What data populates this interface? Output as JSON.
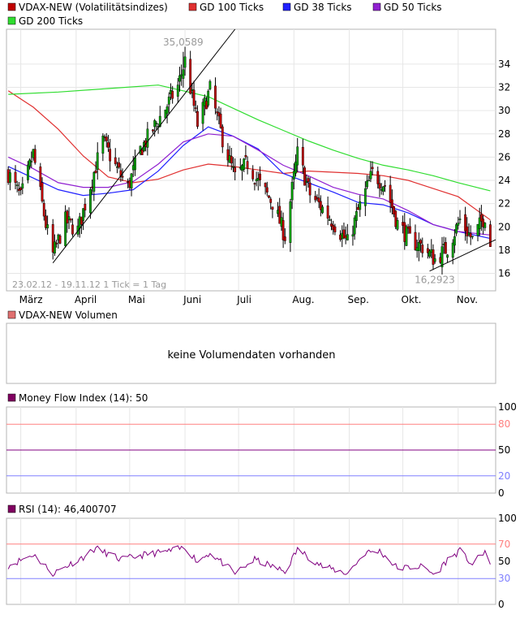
{
  "colors": {
    "frame": "#b4b4b4",
    "grid": "#e6e6e6",
    "text": "#000000",
    "candle_up": "#00a000",
    "candle_down": "#c00000",
    "candle_wick": "#000000",
    "gd100": "#e03030",
    "gd38": "#2020ff",
    "gd50": "#9020d0",
    "gd200": "#30dd30",
    "mfi_line": "#800080",
    "rsi_line": "#800080",
    "level_high": "#ff8080",
    "level_mid": "#800080",
    "level_low": "#8080ff",
    "info_text": "#9a9a9a",
    "volume_legend": "#e07070",
    "mfi_legend": "#800060",
    "rsi_legend": "#800060"
  },
  "legend": {
    "main": "VDAX-NEW (Volatilitätsindizes)",
    "gd100": "GD 100 Ticks",
    "gd38": "GD 38 Ticks",
    "gd50": "GD 50 Ticks",
    "gd200": "GD 200 Ticks"
  },
  "info": "23.02.12 - 19.11.12   1 Tick = 1 Tag",
  "annotations": {
    "high": "35,0589",
    "low": "16,2923"
  },
  "volume": {
    "legend": "VDAX-NEW Volumen",
    "message": "keine Volumendaten vorhanden"
  },
  "mfi": {
    "legend": "Money Flow Index (14): 50",
    "ticks": [
      "100",
      "80",
      "50",
      "20",
      "0"
    ]
  },
  "rsi": {
    "legend": "RSI (14): 46,400707",
    "ticks": [
      "100",
      "70",
      "50",
      "30",
      "0"
    ]
  },
  "chart_data": [
    {
      "type": "candlestick",
      "title": "VDAX-NEW (Volatilitätsindizes)",
      "date_range": "23.02.12 - 19.11.12",
      "x_tick_labels": [
        "März",
        "April",
        "Mai",
        "Juni",
        "Juli",
        "Aug.",
        "Sep.",
        "Okt.",
        "Nov."
      ],
      "y_tick_labels": [
        "16",
        "18",
        "20",
        "22",
        "24",
        "26",
        "28",
        "30",
        "32",
        "34"
      ],
      "ylim": [
        14.5,
        37
      ],
      "grid": true,
      "legend_position": "top-left",
      "annotations": [
        {
          "text": "35,0589",
          "x": "2012-05-31",
          "y": 35.0589
        },
        {
          "text": "16,2923",
          "x": "2012-10-18",
          "y": 16.2923
        }
      ],
      "close_anchors": [
        {
          "x": "2012-02-23",
          "y": 24.6
        },
        {
          "x": "2012-03-01",
          "y": 22.5
        },
        {
          "x": "2012-03-08",
          "y": 26.3
        },
        {
          "x": "2012-03-15",
          "y": 20.2
        },
        {
          "x": "2012-03-19",
          "y": 17.6
        },
        {
          "x": "2012-03-26",
          "y": 20.5
        },
        {
          "x": "2012-04-02",
          "y": 19.7
        },
        {
          "x": "2012-04-09",
          "y": 23.6
        },
        {
          "x": "2012-04-16",
          "y": 27.4
        },
        {
          "x": "2012-04-23",
          "y": 25.2
        },
        {
          "x": "2012-04-30",
          "y": 23.4
        },
        {
          "x": "2012-05-07",
          "y": 26.6
        },
        {
          "x": "2012-05-14",
          "y": 28.4
        },
        {
          "x": "2012-05-21",
          "y": 30.2
        },
        {
          "x": "2012-05-28",
          "y": 32.1
        },
        {
          "x": "2012-06-01",
          "y": 34.3
        },
        {
          "x": "2012-06-08",
          "y": 28.8
        },
        {
          "x": "2012-06-15",
          "y": 31.8
        },
        {
          "x": "2012-06-22",
          "y": 27.6
        },
        {
          "x": "2012-06-29",
          "y": 24.2
        },
        {
          "x": "2012-07-06",
          "y": 25.5
        },
        {
          "x": "2012-07-13",
          "y": 23.6
        },
        {
          "x": "2012-07-20",
          "y": 22.1
        },
        {
          "x": "2012-07-27",
          "y": 19.2
        },
        {
          "x": "2012-08-03",
          "y": 26.3
        },
        {
          "x": "2012-08-10",
          "y": 22.8
        },
        {
          "x": "2012-08-17",
          "y": 21.6
        },
        {
          "x": "2012-08-24",
          "y": 20.2
        },
        {
          "x": "2012-08-31",
          "y": 18.6
        },
        {
          "x": "2012-09-07",
          "y": 21.8
        },
        {
          "x": "2012-09-14",
          "y": 24.6
        },
        {
          "x": "2012-09-21",
          "y": 23.6
        },
        {
          "x": "2012-09-28",
          "y": 20.3
        },
        {
          "x": "2012-10-05",
          "y": 18.9
        },
        {
          "x": "2012-10-12",
          "y": 18.3
        },
        {
          "x": "2012-10-19",
          "y": 17.2
        },
        {
          "x": "2012-10-26",
          "y": 18.2
        },
        {
          "x": "2012-11-02",
          "y": 20.6
        },
        {
          "x": "2012-11-09",
          "y": 18.9
        },
        {
          "x": "2012-11-16",
          "y": 21.0
        },
        {
          "x": "2012-11-19",
          "y": 18.5
        }
      ],
      "series": [
        {
          "name": "GD 100 Ticks",
          "points": [
            {
              "x": "2012-02-23",
              "y": 31.7
            },
            {
              "x": "2012-03-08",
              "y": 30.3
            },
            {
              "x": "2012-03-22",
              "y": 28.4
            },
            {
              "x": "2012-04-05",
              "y": 26.1
            },
            {
              "x": "2012-04-19",
              "y": 24.3
            },
            {
              "x": "2012-05-03",
              "y": 23.8
            },
            {
              "x": "2012-05-17",
              "y": 24.1
            },
            {
              "x": "2012-05-31",
              "y": 24.9
            },
            {
              "x": "2012-06-14",
              "y": 25.4
            },
            {
              "x": "2012-06-28",
              "y": 25.2
            },
            {
              "x": "2012-07-12",
              "y": 24.9
            },
            {
              "x": "2012-07-26",
              "y": 24.6
            },
            {
              "x": "2012-08-09",
              "y": 24.8
            },
            {
              "x": "2012-08-23",
              "y": 24.7
            },
            {
              "x": "2012-09-06",
              "y": 24.6
            },
            {
              "x": "2012-09-20",
              "y": 24.4
            },
            {
              "x": "2012-10-04",
              "y": 24.0
            },
            {
              "x": "2012-10-18",
              "y": 23.3
            },
            {
              "x": "2012-11-01",
              "y": 22.6
            },
            {
              "x": "2012-11-19",
              "y": 20.6
            }
          ]
        },
        {
          "name": "GD 38 Ticks",
          "points": [
            {
              "x": "2012-02-23",
              "y": 25.2
            },
            {
              "x": "2012-03-08",
              "y": 24.2
            },
            {
              "x": "2012-03-22",
              "y": 23.2
            },
            {
              "x": "2012-04-05",
              "y": 22.7
            },
            {
              "x": "2012-04-19",
              "y": 22.9
            },
            {
              "x": "2012-05-03",
              "y": 23.2
            },
            {
              "x": "2012-05-17",
              "y": 24.8
            },
            {
              "x": "2012-05-31",
              "y": 27.0
            },
            {
              "x": "2012-06-14",
              "y": 28.6
            },
            {
              "x": "2012-06-28",
              "y": 27.8
            },
            {
              "x": "2012-07-12",
              "y": 26.7
            },
            {
              "x": "2012-07-26",
              "y": 24.6
            },
            {
              "x": "2012-08-09",
              "y": 23.8
            },
            {
              "x": "2012-08-23",
              "y": 23.0
            },
            {
              "x": "2012-09-06",
              "y": 22.1
            },
            {
              "x": "2012-09-20",
              "y": 21.9
            },
            {
              "x": "2012-10-04",
              "y": 21.2
            },
            {
              "x": "2012-10-18",
              "y": 20.2
            },
            {
              "x": "2012-11-01",
              "y": 19.6
            },
            {
              "x": "2012-11-19",
              "y": 19.0
            }
          ]
        },
        {
          "name": "GD 50 Ticks",
          "points": [
            {
              "x": "2012-02-23",
              "y": 26.0
            },
            {
              "x": "2012-03-08",
              "y": 25.0
            },
            {
              "x": "2012-03-22",
              "y": 23.8
            },
            {
              "x": "2012-04-05",
              "y": 23.4
            },
            {
              "x": "2012-04-19",
              "y": 23.4
            },
            {
              "x": "2012-05-03",
              "y": 23.9
            },
            {
              "x": "2012-05-17",
              "y": 25.4
            },
            {
              "x": "2012-05-31",
              "y": 27.3
            },
            {
              "x": "2012-06-14",
              "y": 28.0
            },
            {
              "x": "2012-06-28",
              "y": 27.8
            },
            {
              "x": "2012-07-12",
              "y": 26.6
            },
            {
              "x": "2012-07-26",
              "y": 25.3
            },
            {
              "x": "2012-08-09",
              "y": 24.4
            },
            {
              "x": "2012-08-23",
              "y": 23.4
            },
            {
              "x": "2012-09-06",
              "y": 22.8
            },
            {
              "x": "2012-09-20",
              "y": 22.4
            },
            {
              "x": "2012-10-04",
              "y": 21.4
            },
            {
              "x": "2012-10-18",
              "y": 20.2
            },
            {
              "x": "2012-11-01",
              "y": 19.6
            },
            {
              "x": "2012-11-19",
              "y": 19.3
            }
          ]
        },
        {
          "name": "GD 200 Ticks",
          "points": [
            {
              "x": "2012-02-23",
              "y": 31.4
            },
            {
              "x": "2012-03-22",
              "y": 31.6
            },
            {
              "x": "2012-04-19",
              "y": 31.9
            },
            {
              "x": "2012-05-17",
              "y": 32.2
            },
            {
              "x": "2012-05-31",
              "y": 31.7
            },
            {
              "x": "2012-06-14",
              "y": 31.2
            },
            {
              "x": "2012-06-28",
              "y": 30.2
            },
            {
              "x": "2012-07-12",
              "y": 29.2
            },
            {
              "x": "2012-07-26",
              "y": 28.3
            },
            {
              "x": "2012-08-09",
              "y": 27.4
            },
            {
              "x": "2012-08-23",
              "y": 26.6
            },
            {
              "x": "2012-09-06",
              "y": 25.9
            },
            {
              "x": "2012-09-20",
              "y": 25.3
            },
            {
              "x": "2012-10-04",
              "y": 24.9
            },
            {
              "x": "2012-10-18",
              "y": 24.4
            },
            {
              "x": "2012-11-01",
              "y": 23.8
            },
            {
              "x": "2012-11-19",
              "y": 23.1
            }
          ]
        }
      ],
      "trendlines": [
        {
          "from": {
            "x": "2012-03-19",
            "y": 16.9
          },
          "to": {
            "x": "2012-06-29",
            "y": 37.0
          }
        },
        {
          "from": {
            "x": "2012-10-16",
            "y": 16.2
          },
          "to": {
            "x": "2012-11-22",
            "y": 18.9
          }
        }
      ]
    },
    {
      "type": "line",
      "title": "Money Flow Index (14): 50",
      "ylim": [
        0,
        100
      ],
      "y_tick_labels": [
        "100",
        "80",
        "50",
        "20",
        "0"
      ],
      "reference_lines": [
        80,
        50,
        20
      ],
      "series": []
    },
    {
      "type": "line",
      "title": "RSI (14): 46,400707",
      "ylim": [
        0,
        100
      ],
      "y_tick_labels": [
        "100",
        "70",
        "50",
        "30",
        "0"
      ],
      "reference_lines": [
        70,
        50,
        30
      ],
      "last_value": 46.400707,
      "rsi_anchors": [
        {
          "x": "2012-02-23",
          "y": 45
        },
        {
          "x": "2012-03-08",
          "y": 58
        },
        {
          "x": "2012-03-19",
          "y": 36
        },
        {
          "x": "2012-04-05",
          "y": 55
        },
        {
          "x": "2012-04-12",
          "y": 65
        },
        {
          "x": "2012-04-26",
          "y": 52
        },
        {
          "x": "2012-05-10",
          "y": 58
        },
        {
          "x": "2012-05-24",
          "y": 62
        },
        {
          "x": "2012-06-01",
          "y": 66
        },
        {
          "x": "2012-06-08",
          "y": 50
        },
        {
          "x": "2012-06-15",
          "y": 60
        },
        {
          "x": "2012-06-29",
          "y": 36
        },
        {
          "x": "2012-07-10",
          "y": 52
        },
        {
          "x": "2012-07-27",
          "y": 38
        },
        {
          "x": "2012-08-03",
          "y": 64
        },
        {
          "x": "2012-08-17",
          "y": 44
        },
        {
          "x": "2012-08-31",
          "y": 36
        },
        {
          "x": "2012-09-10",
          "y": 60
        },
        {
          "x": "2012-09-18",
          "y": 62
        },
        {
          "x": "2012-09-28",
          "y": 42
        },
        {
          "x": "2012-10-12",
          "y": 44
        },
        {
          "x": "2012-10-19",
          "y": 34
        },
        {
          "x": "2012-10-26",
          "y": 52
        },
        {
          "x": "2012-11-02",
          "y": 62
        },
        {
          "x": "2012-11-09",
          "y": 46
        },
        {
          "x": "2012-11-16",
          "y": 62
        },
        {
          "x": "2012-11-19",
          "y": 46.4
        }
      ]
    }
  ]
}
